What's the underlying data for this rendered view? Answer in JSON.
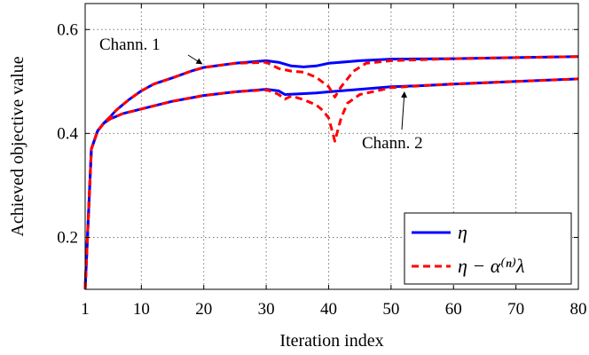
{
  "chart_data": {
    "type": "line",
    "xlabel": "Iteration index",
    "ylabel": "Achieved objective value",
    "xlim": [
      1,
      80
    ],
    "ylim": [
      0.1,
      0.65
    ],
    "xticks": [
      1,
      10,
      20,
      30,
      40,
      50,
      60,
      70,
      80
    ],
    "yticks": [
      0.2,
      0.4,
      0.6
    ],
    "yticklabels": [
      "0.2",
      "0.4",
      "0.6"
    ],
    "grid": true,
    "legend_position": "bottom-right",
    "colors": {
      "eta": "#0000ff",
      "penalized": "#ff0000"
    },
    "series": [
      {
        "name": "η",
        "style": "solid",
        "channel": "Chann. 1",
        "points": [
          [
            1,
            0.1
          ],
          [
            2,
            0.37
          ],
          [
            3,
            0.405
          ],
          [
            4,
            0.42
          ],
          [
            5,
            0.432
          ],
          [
            6,
            0.445
          ],
          [
            8,
            0.465
          ],
          [
            10,
            0.482
          ],
          [
            12,
            0.495
          ],
          [
            15,
            0.507
          ],
          [
            18,
            0.52
          ],
          [
            20,
            0.527
          ],
          [
            25,
            0.535
          ],
          [
            30,
            0.54
          ],
          [
            32,
            0.537
          ],
          [
            34,
            0.53
          ],
          [
            36,
            0.528
          ],
          [
            38,
            0.53
          ],
          [
            40,
            0.535
          ],
          [
            45,
            0.54
          ],
          [
            50,
            0.543
          ],
          [
            60,
            0.544
          ],
          [
            70,
            0.546
          ],
          [
            80,
            0.548
          ]
        ]
      },
      {
        "name": "η − α⁽ⁿ⁾λ",
        "style": "dashed",
        "channel": "Chann. 1",
        "points": [
          [
            1,
            0.1
          ],
          [
            2,
            0.37
          ],
          [
            3,
            0.405
          ],
          [
            4,
            0.42
          ],
          [
            5,
            0.432
          ],
          [
            6,
            0.445
          ],
          [
            8,
            0.465
          ],
          [
            10,
            0.482
          ],
          [
            12,
            0.495
          ],
          [
            15,
            0.507
          ],
          [
            18,
            0.52
          ],
          [
            20,
            0.527
          ],
          [
            25,
            0.535
          ],
          [
            30,
            0.537
          ],
          [
            32,
            0.525
          ],
          [
            34,
            0.52
          ],
          [
            36,
            0.518
          ],
          [
            38,
            0.508
          ],
          [
            40,
            0.49
          ],
          [
            41,
            0.47
          ],
          [
            42,
            0.49
          ],
          [
            44,
            0.52
          ],
          [
            46,
            0.535
          ],
          [
            50,
            0.54
          ],
          [
            60,
            0.544
          ],
          [
            70,
            0.546
          ],
          [
            80,
            0.548
          ]
        ]
      },
      {
        "name": "η",
        "style": "solid",
        "channel": "Chann. 2",
        "points": [
          [
            1,
            0.1
          ],
          [
            2,
            0.37
          ],
          [
            3,
            0.405
          ],
          [
            4,
            0.42
          ],
          [
            5,
            0.428
          ],
          [
            7,
            0.438
          ],
          [
            10,
            0.447
          ],
          [
            15,
            0.462
          ],
          [
            20,
            0.473
          ],
          [
            25,
            0.48
          ],
          [
            30,
            0.485
          ],
          [
            32,
            0.482
          ],
          [
            33,
            0.475
          ],
          [
            35,
            0.476
          ],
          [
            38,
            0.478
          ],
          [
            40,
            0.48
          ],
          [
            45,
            0.485
          ],
          [
            50,
            0.49
          ],
          [
            55,
            0.492
          ],
          [
            60,
            0.495
          ],
          [
            70,
            0.5
          ],
          [
            80,
            0.505
          ]
        ]
      },
      {
        "name": "η − α⁽ⁿ⁾λ",
        "style": "dashed",
        "channel": "Chann. 2",
        "points": [
          [
            1,
            0.1
          ],
          [
            2,
            0.37
          ],
          [
            3,
            0.405
          ],
          [
            4,
            0.42
          ],
          [
            5,
            0.428
          ],
          [
            7,
            0.438
          ],
          [
            10,
            0.447
          ],
          [
            15,
            0.462
          ],
          [
            20,
            0.473
          ],
          [
            25,
            0.48
          ],
          [
            30,
            0.484
          ],
          [
            31,
            0.48
          ],
          [
            32,
            0.475
          ],
          [
            33,
            0.466
          ],
          [
            34,
            0.472
          ],
          [
            36,
            0.465
          ],
          [
            38,
            0.455
          ],
          [
            39,
            0.445
          ],
          [
            40,
            0.43
          ],
          [
            41,
            0.385
          ],
          [
            42,
            0.43
          ],
          [
            43,
            0.458
          ],
          [
            45,
            0.475
          ],
          [
            50,
            0.488
          ],
          [
            55,
            0.492
          ],
          [
            60,
            0.495
          ],
          [
            70,
            0.5
          ],
          [
            80,
            0.505
          ]
        ]
      }
    ],
    "legend": [
      {
        "label": "η",
        "style": "solid"
      },
      {
        "label": "η − α⁽ⁿ⁾λ",
        "style": "dashed"
      }
    ],
    "annotations": [
      {
        "text": "Chann. 1",
        "target": [
          20,
          0.527
        ]
      },
      {
        "text": "Chann. 2",
        "target": [
          52,
          0.49
        ]
      }
    ]
  }
}
